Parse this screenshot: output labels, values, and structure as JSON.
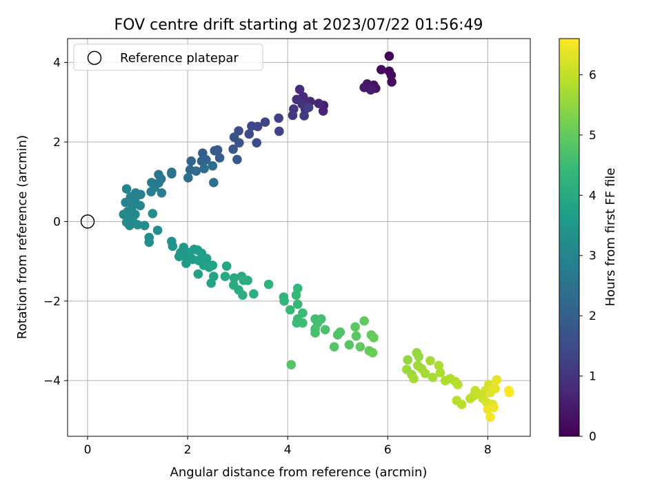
{
  "chart_data": {
    "type": "scatter",
    "title": "FOV centre drift starting at 2023/07/22 01:56:49",
    "xlabel": "Angular distance from reference (arcmin)",
    "ylabel": "Rotation from reference (arcmin)",
    "xlim": [
      -0.4,
      8.85
    ],
    "ylim": [
      -5.4,
      4.6
    ],
    "xticks": [
      0,
      2,
      4,
      6,
      8
    ],
    "yticks": [
      -4,
      -2,
      0,
      2,
      4
    ],
    "grid": true,
    "legend": {
      "position": "top-left",
      "entries": [
        "Reference platepar"
      ]
    },
    "reference_point": {
      "x": 0,
      "y": 0
    },
    "colorbar": {
      "label": "Hours from first FF file",
      "colormap": "viridis",
      "range": [
        0,
        6.6
      ],
      "ticks": [
        0,
        1,
        2,
        3,
        4,
        5,
        6
      ]
    },
    "colormap_stops": [
      "#440154",
      "#482878",
      "#3e4a89",
      "#31688e",
      "#26828e",
      "#1f9e89",
      "#35b779",
      "#6ece58",
      "#b5de2b",
      "#fde725"
    ],
    "series": [
      {
        "points": [
          {
            "x": 6.03,
            "y": 4.16,
            "t": 0.05
          },
          {
            "x": 6.03,
            "y": 3.78,
            "t": 0.1
          },
          {
            "x": 5.87,
            "y": 3.82,
            "t": 0.15
          },
          {
            "x": 6.07,
            "y": 3.68,
            "t": 0.2
          },
          {
            "x": 6.08,
            "y": 3.51,
            "t": 0.25
          },
          {
            "x": 5.72,
            "y": 3.43,
            "t": 0.3
          },
          {
            "x": 5.76,
            "y": 3.35,
            "t": 0.35
          },
          {
            "x": 5.59,
            "y": 3.46,
            "t": 0.4
          },
          {
            "x": 5.53,
            "y": 3.37,
            "t": 0.45
          },
          {
            "x": 5.66,
            "y": 3.31,
            "t": 0.5
          },
          {
            "x": 4.72,
            "y": 2.92,
            "t": 0.6
          },
          {
            "x": 4.71,
            "y": 2.78,
            "t": 0.65
          },
          {
            "x": 4.62,
            "y": 2.97,
            "t": 0.7
          },
          {
            "x": 4.45,
            "y": 3.02,
            "t": 0.75
          },
          {
            "x": 4.31,
            "y": 3.14,
            "t": 0.8
          },
          {
            "x": 4.24,
            "y": 3.32,
            "t": 0.85
          },
          {
            "x": 4.18,
            "y": 3.07,
            "t": 0.9
          },
          {
            "x": 4.29,
            "y": 2.95,
            "t": 0.95
          },
          {
            "x": 4.35,
            "y": 2.82,
            "t": 1.0
          },
          {
            "x": 4.12,
            "y": 2.83,
            "t": 1.05
          },
          {
            "x": 4.1,
            "y": 2.67,
            "t": 1.1
          },
          {
            "x": 4.33,
            "y": 2.66,
            "t": 1.15
          },
          {
            "x": 4.42,
            "y": 2.87,
            "t": 1.2
          },
          {
            "x": 3.82,
            "y": 2.6,
            "t": 1.25
          },
          {
            "x": 3.83,
            "y": 2.27,
            "t": 1.3
          },
          {
            "x": 3.55,
            "y": 2.5,
            "t": 1.35
          },
          {
            "x": 3.4,
            "y": 2.39,
            "t": 1.4
          },
          {
            "x": 3.28,
            "y": 2.4,
            "t": 1.45
          },
          {
            "x": 3.23,
            "y": 2.2,
            "t": 1.5
          },
          {
            "x": 3.38,
            "y": 1.98,
            "t": 1.55
          },
          {
            "x": 3.02,
            "y": 2.28,
            "t": 1.6
          },
          {
            "x": 2.93,
            "y": 2.12,
            "t": 1.65
          },
          {
            "x": 3.03,
            "y": 1.98,
            "t": 1.7
          },
          {
            "x": 2.91,
            "y": 1.82,
            "t": 1.75
          },
          {
            "x": 2.99,
            "y": 1.56,
            "t": 1.8
          },
          {
            "x": 2.6,
            "y": 1.8,
            "t": 1.85
          },
          {
            "x": 2.54,
            "y": 1.78,
            "t": 1.9
          },
          {
            "x": 2.64,
            "y": 1.6,
            "t": 1.95
          },
          {
            "x": 2.3,
            "y": 1.72,
            "t": 2.0
          },
          {
            "x": 2.28,
            "y": 1.52,
            "t": 2.05
          },
          {
            "x": 2.37,
            "y": 1.55,
            "t": 2.1
          },
          {
            "x": 2.07,
            "y": 1.52,
            "t": 2.15
          },
          {
            "x": 2.05,
            "y": 1.3,
            "t": 2.2
          },
          {
            "x": 2.17,
            "y": 1.27,
            "t": 2.25
          },
          {
            "x": 2.33,
            "y": 1.33,
            "t": 2.3
          },
          {
            "x": 2.5,
            "y": 1.4,
            "t": 2.35
          },
          {
            "x": 2.01,
            "y": 1.1,
            "t": 2.4
          },
          {
            "x": 2.52,
            "y": 0.98,
            "t": 2.45
          },
          {
            "x": 1.68,
            "y": 1.2,
            "t": 2.5
          },
          {
            "x": 1.68,
            "y": 1.24,
            "t": 2.52
          },
          {
            "x": 1.42,
            "y": 1.18,
            "t": 2.55
          },
          {
            "x": 1.47,
            "y": 1.07,
            "t": 2.6
          },
          {
            "x": 1.42,
            "y": 0.97,
            "t": 2.65
          },
          {
            "x": 1.28,
            "y": 0.98,
            "t": 2.7
          },
          {
            "x": 1.34,
            "y": 0.86,
            "t": 2.75
          },
          {
            "x": 1.48,
            "y": 0.72,
            "t": 2.8
          },
          {
            "x": 1.27,
            "y": 0.75,
            "t": 2.85
          },
          {
            "x": 1.06,
            "y": 0.68,
            "t": 2.88
          },
          {
            "x": 0.96,
            "y": 0.72,
            "t": 2.9
          },
          {
            "x": 0.78,
            "y": 0.82,
            "t": 2.92
          },
          {
            "x": 0.95,
            "y": 0.57,
            "t": 2.94
          },
          {
            "x": 0.86,
            "y": 0.62,
            "t": 2.96
          },
          {
            "x": 0.76,
            "y": 0.48,
            "t": 2.98
          },
          {
            "x": 0.9,
            "y": 0.42,
            "t": 3.0
          },
          {
            "x": 1.05,
            "y": 0.4,
            "t": 3.02
          },
          {
            "x": 0.88,
            "y": 0.3,
            "t": 3.04
          },
          {
            "x": 0.8,
            "y": 0.25,
            "t": 3.06
          },
          {
            "x": 0.72,
            "y": 0.18,
            "t": 3.08
          },
          {
            "x": 0.95,
            "y": 0.18,
            "t": 3.1
          },
          {
            "x": 0.82,
            "y": 0.05,
            "t": 3.12
          },
          {
            "x": 0.9,
            "y": 0.02,
            "t": 3.14
          },
          {
            "x": 0.78,
            "y": -0.02,
            "t": 3.16
          },
          {
            "x": 0.84,
            "y": -0.1,
            "t": 3.18
          },
          {
            "x": 1.0,
            "y": -0.08,
            "t": 3.2
          },
          {
            "x": 1.14,
            "y": -0.1,
            "t": 3.22
          },
          {
            "x": 1.3,
            "y": 0.2,
            "t": 3.24
          },
          {
            "x": 1.4,
            "y": -0.22,
            "t": 3.26
          },
          {
            "x": 1.23,
            "y": -0.4,
            "t": 3.28
          },
          {
            "x": 1.23,
            "y": -0.52,
            "t": 3.3
          },
          {
            "x": 1.68,
            "y": -0.5,
            "t": 3.35
          },
          {
            "x": 1.7,
            "y": -0.62,
            "t": 3.4
          },
          {
            "x": 1.92,
            "y": -0.65,
            "t": 3.45
          },
          {
            "x": 1.86,
            "y": -0.78,
            "t": 3.5
          },
          {
            "x": 1.83,
            "y": -0.88,
            "t": 3.52
          },
          {
            "x": 1.97,
            "y": -0.9,
            "t": 3.54
          },
          {
            "x": 2.04,
            "y": -0.78,
            "t": 3.56
          },
          {
            "x": 1.97,
            "y": -1.05,
            "t": 3.58
          },
          {
            "x": 2.13,
            "y": -0.7,
            "t": 3.6
          },
          {
            "x": 2.2,
            "y": -0.72,
            "t": 3.62
          },
          {
            "x": 2.1,
            "y": -0.95,
            "t": 3.64
          },
          {
            "x": 2.22,
            "y": -0.98,
            "t": 3.66
          },
          {
            "x": 2.28,
            "y": -0.8,
            "t": 3.68
          },
          {
            "x": 2.38,
            "y": -0.93,
            "t": 3.7
          },
          {
            "x": 2.43,
            "y": -1.15,
            "t": 3.72
          },
          {
            "x": 2.32,
            "y": -1.1,
            "t": 3.74
          },
          {
            "x": 2.21,
            "y": -1.32,
            "t": 3.76
          },
          {
            "x": 2.5,
            "y": -1.1,
            "t": 3.8
          },
          {
            "x": 2.52,
            "y": -1.38,
            "t": 3.84
          },
          {
            "x": 2.47,
            "y": -1.55,
            "t": 3.88
          },
          {
            "x": 2.78,
            "y": -1.12,
            "t": 3.9
          },
          {
            "x": 2.75,
            "y": -1.38,
            "t": 3.95
          },
          {
            "x": 2.93,
            "y": -1.42,
            "t": 4.0
          },
          {
            "x": 3.08,
            "y": -1.38,
            "t": 4.02
          },
          {
            "x": 2.92,
            "y": -1.6,
            "t": 4.05
          },
          {
            "x": 3.02,
            "y": -1.72,
            "t": 4.08
          },
          {
            "x": 3.12,
            "y": -1.48,
            "t": 4.1
          },
          {
            "x": 3.2,
            "y": -1.48,
            "t": 4.12
          },
          {
            "x": 3.1,
            "y": -1.85,
            "t": 4.14
          },
          {
            "x": 3.32,
            "y": -1.82,
            "t": 4.16
          },
          {
            "x": 3.62,
            "y": -1.58,
            "t": 4.2
          },
          {
            "x": 3.92,
            "y": -1.9,
            "t": 4.3
          },
          {
            "x": 3.93,
            "y": -2.0,
            "t": 4.32
          },
          {
            "x": 4.2,
            "y": -1.68,
            "t": 4.4
          },
          {
            "x": 4.17,
            "y": -1.85,
            "t": 4.42
          },
          {
            "x": 4.2,
            "y": -2.08,
            "t": 4.44
          },
          {
            "x": 4.05,
            "y": -2.22,
            "t": 4.46
          },
          {
            "x": 4.3,
            "y": -2.3,
            "t": 4.48
          },
          {
            "x": 4.2,
            "y": -2.45,
            "t": 4.5
          },
          {
            "x": 4.18,
            "y": -2.55,
            "t": 4.52
          },
          {
            "x": 4.3,
            "y": -2.55,
            "t": 4.54
          },
          {
            "x": 4.55,
            "y": -2.45,
            "t": 4.58
          },
          {
            "x": 4.6,
            "y": -2.55,
            "t": 4.6
          },
          {
            "x": 4.67,
            "y": -2.45,
            "t": 4.62
          },
          {
            "x": 4.55,
            "y": -2.7,
            "t": 4.64
          },
          {
            "x": 4.55,
            "y": -2.8,
            "t": 4.66
          },
          {
            "x": 4.75,
            "y": -2.72,
            "t": 4.7
          },
          {
            "x": 5.0,
            "y": -2.85,
            "t": 4.74
          },
          {
            "x": 5.05,
            "y": -2.78,
            "t": 4.78
          },
          {
            "x": 4.93,
            "y": -3.15,
            "t": 4.8
          },
          {
            "x": 4.07,
            "y": -3.6,
            "t": 4.82
          },
          {
            "x": 5.23,
            "y": -3.1,
            "t": 4.85
          },
          {
            "x": 5.37,
            "y": -2.88,
            "t": 4.9
          },
          {
            "x": 5.35,
            "y": -2.65,
            "t": 4.92
          },
          {
            "x": 5.53,
            "y": -2.5,
            "t": 4.94
          },
          {
            "x": 5.45,
            "y": -3.15,
            "t": 4.96
          },
          {
            "x": 5.63,
            "y": -3.25,
            "t": 5.0
          },
          {
            "x": 5.67,
            "y": -2.85,
            "t": 5.02
          },
          {
            "x": 5.72,
            "y": -2.92,
            "t": 5.04
          },
          {
            "x": 5.7,
            "y": -3.3,
            "t": 5.06
          },
          {
            "x": 6.4,
            "y": -3.48,
            "t": 5.5
          },
          {
            "x": 6.58,
            "y": -3.3,
            "t": 5.55
          },
          {
            "x": 6.62,
            "y": -3.4,
            "t": 5.58
          },
          {
            "x": 6.38,
            "y": -3.72,
            "t": 5.6
          },
          {
            "x": 6.48,
            "y": -3.85,
            "t": 5.62
          },
          {
            "x": 6.6,
            "y": -3.62,
            "t": 5.64
          },
          {
            "x": 6.68,
            "y": -3.7,
            "t": 5.66
          },
          {
            "x": 6.52,
            "y": -3.95,
            "t": 5.68
          },
          {
            "x": 6.75,
            "y": -3.82,
            "t": 5.7
          },
          {
            "x": 6.85,
            "y": -3.5,
            "t": 5.72
          },
          {
            "x": 6.9,
            "y": -3.92,
            "t": 5.74
          },
          {
            "x": 7.02,
            "y": -3.62,
            "t": 5.76
          },
          {
            "x": 7.05,
            "y": -3.8,
            "t": 5.78
          },
          {
            "x": 7.15,
            "y": -4.0,
            "t": 5.8
          },
          {
            "x": 7.25,
            "y": -3.95,
            "t": 5.82
          },
          {
            "x": 7.35,
            "y": -4.02,
            "t": 5.85
          },
          {
            "x": 7.4,
            "y": -4.1,
            "t": 5.88
          },
          {
            "x": 7.38,
            "y": -4.5,
            "t": 5.9
          },
          {
            "x": 7.48,
            "y": -4.6,
            "t": 5.92
          },
          {
            "x": 7.65,
            "y": -4.45,
            "t": 5.96
          },
          {
            "x": 7.72,
            "y": -4.38,
            "t": 6.0
          },
          {
            "x": 7.75,
            "y": -4.25,
            "t": 6.02
          },
          {
            "x": 7.85,
            "y": -4.35,
            "t": 6.06
          },
          {
            "x": 7.9,
            "y": -4.45,
            "t": 6.1
          },
          {
            "x": 7.95,
            "y": -4.25,
            "t": 6.14
          },
          {
            "x": 7.98,
            "y": -4.55,
            "t": 6.18
          },
          {
            "x": 8.02,
            "y": -4.1,
            "t": 6.22
          },
          {
            "x": 8.05,
            "y": -4.3,
            "t": 6.26
          },
          {
            "x": 8.1,
            "y": -4.6,
            "t": 6.3
          },
          {
            "x": 8.15,
            "y": -4.2,
            "t": 6.34
          },
          {
            "x": 8.18,
            "y": -3.98,
            "t": 6.38
          },
          {
            "x": 8.0,
            "y": -4.72,
            "t": 6.42
          },
          {
            "x": 8.12,
            "y": -4.68,
            "t": 6.46
          },
          {
            "x": 8.05,
            "y": -4.92,
            "t": 6.5
          },
          {
            "x": 8.42,
            "y": -4.25,
            "t": 6.55
          },
          {
            "x": 8.43,
            "y": -4.3,
            "t": 6.58
          }
        ]
      }
    ]
  }
}
